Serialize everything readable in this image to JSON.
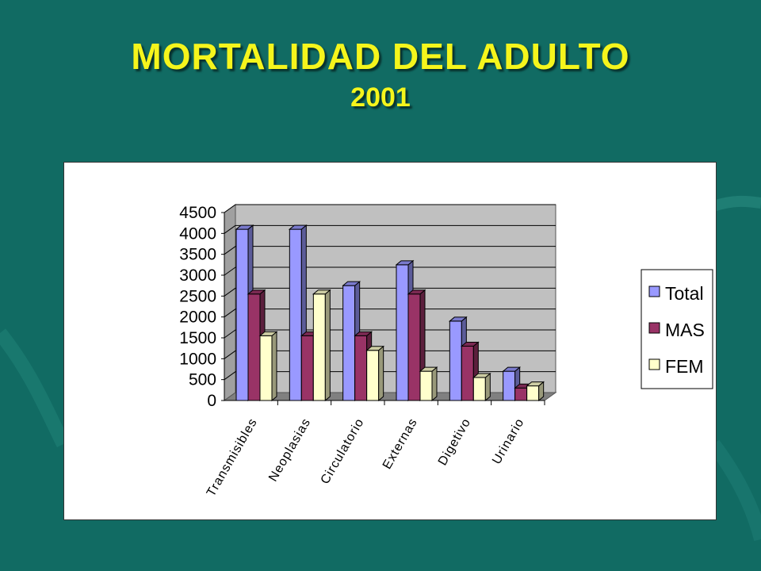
{
  "slide": {
    "title": "MORTALIDAD  DEL ADULTO",
    "subtitle": "2001"
  },
  "colors": {
    "background": "#116b63",
    "title": "#f5f51c",
    "plot_wall": "#c0c0c0",
    "floor": "#808080"
  },
  "chart_data": {
    "type": "bar",
    "style": "3d-clustered-column",
    "categories": [
      "Transmisibles",
      "Neoplasias",
      "Circulatorio",
      "Externas",
      "Digetivo",
      "Urinario"
    ],
    "series": [
      {
        "name": "Total",
        "color": "#9999ff",
        "values": [
          4100,
          4100,
          2750,
          3250,
          1900,
          700
        ]
      },
      {
        "name": "MAS",
        "color": "#993366",
        "values": [
          2550,
          1550,
          1550,
          2550,
          1300,
          300
        ]
      },
      {
        "name": "FEM",
        "color": "#ffffcc",
        "values": [
          1550,
          2550,
          1200,
          700,
          550,
          350
        ]
      }
    ],
    "ylim": [
      0,
      4500
    ],
    "yticks": [
      "0",
      "500",
      "1000",
      "1500",
      "2000",
      "2500",
      "3000",
      "3500",
      "4000",
      "4500"
    ],
    "grid": true,
    "legend": "right"
  }
}
